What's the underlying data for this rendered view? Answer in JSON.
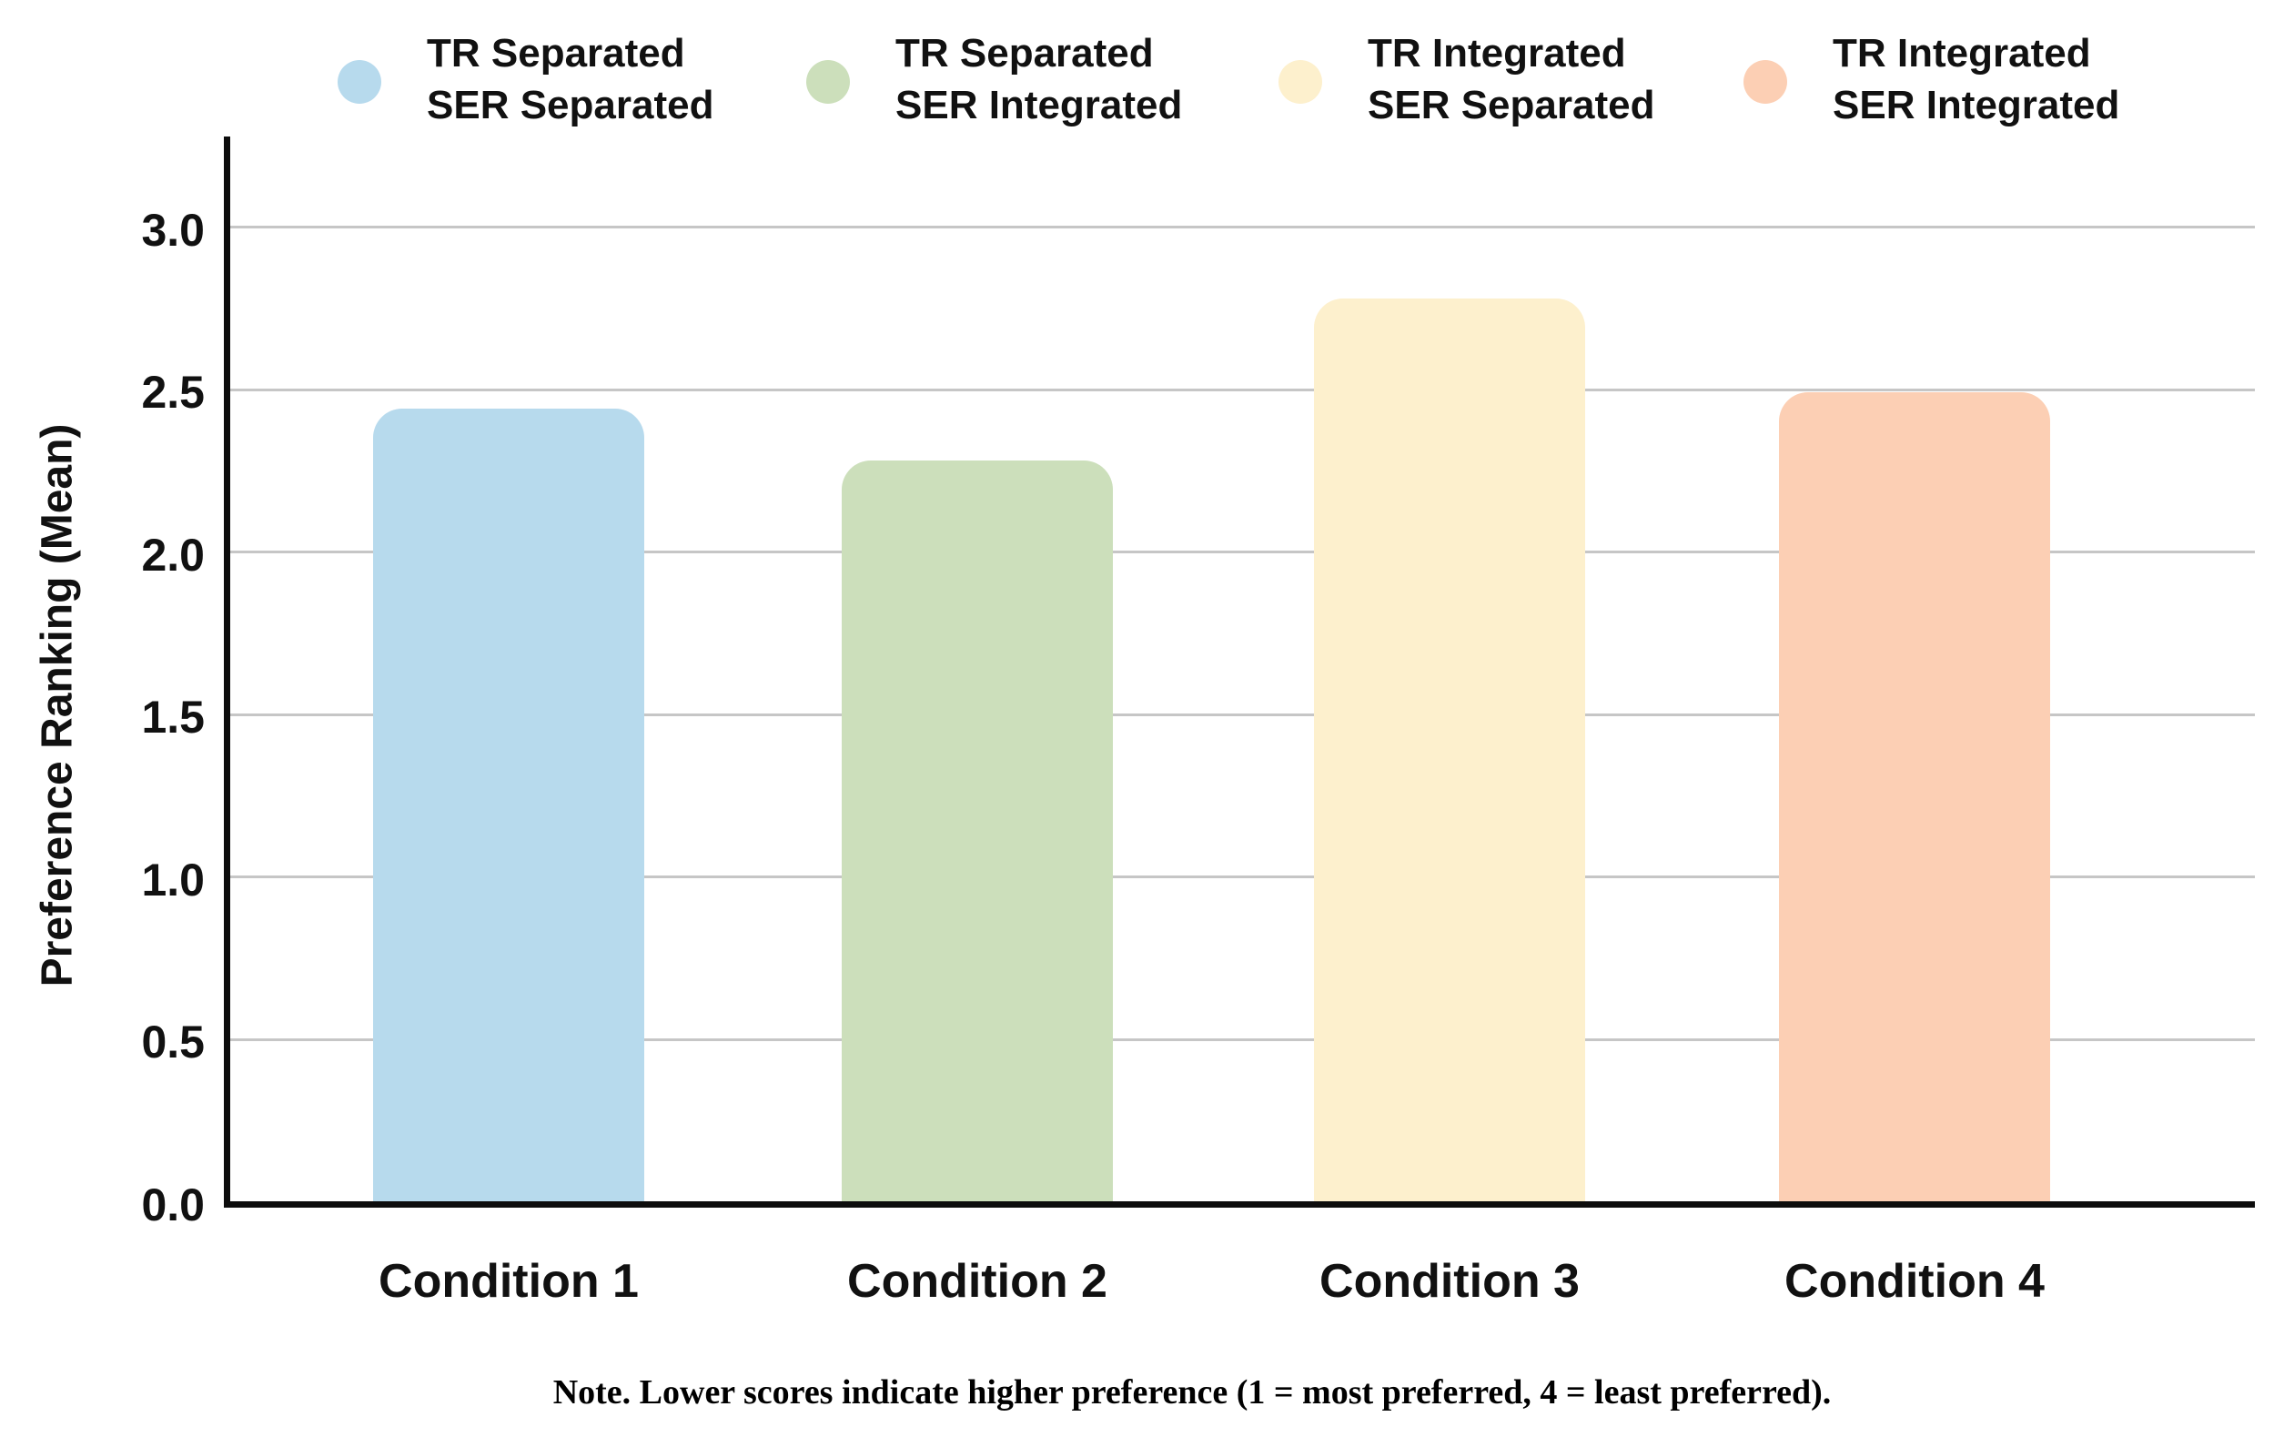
{
  "chart_data": {
    "type": "bar",
    "title": "",
    "categories": [
      "Condition 1",
      "Condition 2",
      "Condition 3",
      "Condition 4"
    ],
    "values": [
      2.44,
      2.28,
      2.78,
      2.49
    ],
    "bar_colors": [
      "#B7DAED",
      "#CCDFBB",
      "#FDF0CD",
      "#FCCFB4"
    ],
    "xlabel": "",
    "ylabel": "Preference Ranking (Mean)",
    "ylim": [
      0.0,
      3.25
    ],
    "yticks": [
      0.0,
      0.5,
      1.0,
      1.5,
      2.0,
      2.5,
      3.0
    ],
    "ytick_labels": [
      "0.0",
      "0.5",
      "1.0",
      "1.5",
      "2.0",
      "2.5",
      "3.0"
    ],
    "grid": "horizontal-only",
    "legend_position": "top",
    "legend": [
      {
        "line1": "TR Separated",
        "line2": "SER Separated",
        "color": "#B7DAED"
      },
      {
        "line1": "TR Separated",
        "line2": "SER Integrated",
        "color": "#CCDFBB"
      },
      {
        "line1": "TR Integrated",
        "line2": "SER Separated",
        "color": "#FDF0CD"
      },
      {
        "line1": "TR Integrated",
        "line2": "SER Integrated",
        "color": "#FCCFB4"
      }
    ],
    "note": "Note. Lower scores indicate higher preference (1 = most preferred, 4 = least preferred)."
  },
  "axis": {
    "ylabel": "Preference Ranking (Mean)"
  },
  "note_text": "Note. Lower scores indicate higher preference (1 = most preferred, 4 = least preferred)."
}
